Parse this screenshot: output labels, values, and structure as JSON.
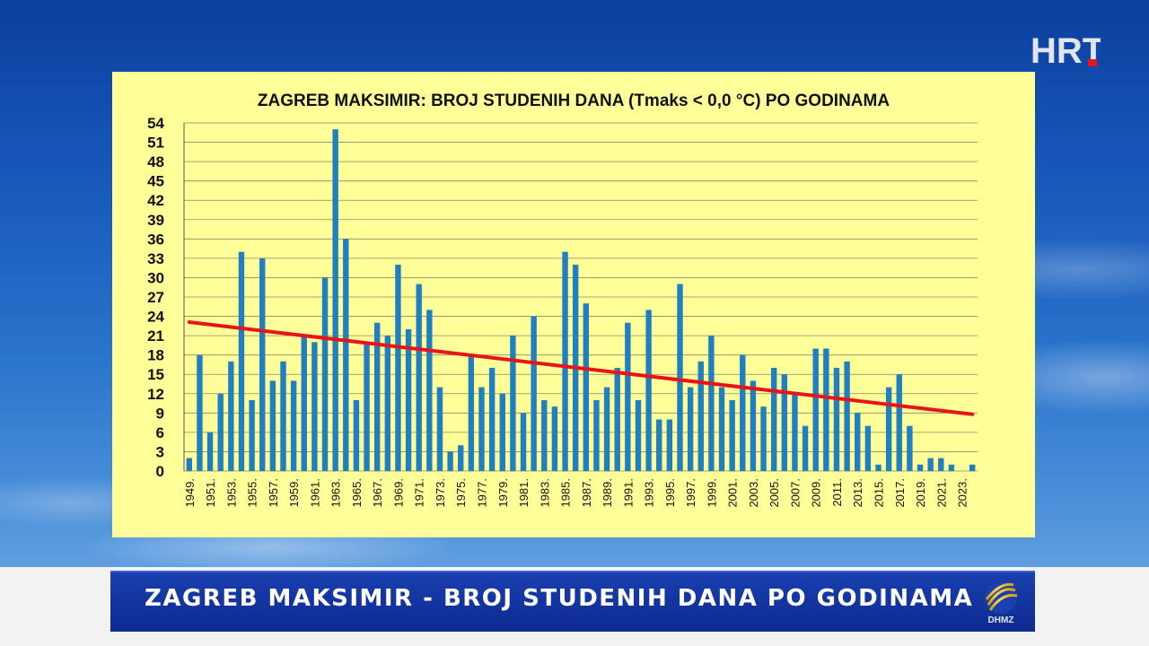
{
  "broadcaster_logo": "HRT",
  "chart_data": {
    "type": "bar",
    "title": "ZAGREB MAKSIMIR: BROJ STUDENIH DANA (Tmaks < 0,0 °C) PO GODINAMA",
    "xlabel": "",
    "ylabel": "",
    "ylim": [
      0,
      54
    ],
    "yticks": [
      0,
      3,
      6,
      9,
      12,
      15,
      18,
      21,
      24,
      27,
      30,
      33,
      36,
      39,
      42,
      45,
      48,
      51,
      54
    ],
    "grid": true,
    "categories": [
      "1949.",
      "1950.",
      "1951.",
      "1952.",
      "1953.",
      "1954.",
      "1955.",
      "1956.",
      "1957.",
      "1958.",
      "1959.",
      "1960.",
      "1961.",
      "1962.",
      "1963.",
      "1964.",
      "1965.",
      "1966.",
      "1967.",
      "1968.",
      "1969.",
      "1970.",
      "1971.",
      "1972.",
      "1973.",
      "1974.",
      "1975.",
      "1976.",
      "1977.",
      "1978.",
      "1979.",
      "1980.",
      "1981.",
      "1982.",
      "1983.",
      "1984.",
      "1985.",
      "1986.",
      "1987.",
      "1988.",
      "1989.",
      "1990.",
      "1991.",
      "1992.",
      "1993.",
      "1994.",
      "1995.",
      "1996.",
      "1997.",
      "1998.",
      "1999.",
      "2000.",
      "2001.",
      "2002.",
      "2003.",
      "2004.",
      "2005.",
      "2006.",
      "2007.",
      "2008.",
      "2009.",
      "2010.",
      "2011.",
      "2012.",
      "2013.",
      "2014.",
      "2015.",
      "2016.",
      "2017.",
      "2018.",
      "2019.",
      "2020.",
      "2021.",
      "2022.",
      "2023.",
      "2024."
    ],
    "tick_labels": [
      "1949.",
      "1951.",
      "1953.",
      "1955.",
      "1957.",
      "1959.",
      "1961.",
      "1963.",
      "1965.",
      "1967.",
      "1969.",
      "1971.",
      "1973.",
      "1975.",
      "1977.",
      "1979.",
      "1981.",
      "1983.",
      "1985.",
      "1987.",
      "1989.",
      "1991.",
      "1993.",
      "1995.",
      "1997.",
      "1999.",
      "2001.",
      "2003.",
      "2005.",
      "2007.",
      "2009.",
      "2011.",
      "2013.",
      "2015.",
      "2017.",
      "2019.",
      "2021.",
      "2023."
    ],
    "values": [
      2,
      18,
      6,
      12,
      17,
      34,
      11,
      33,
      14,
      17,
      14,
      21,
      20,
      30,
      53,
      36,
      11,
      20,
      23,
      21,
      32,
      22,
      29,
      25,
      13,
      3,
      4,
      18,
      13,
      16,
      12,
      21,
      9,
      24,
      11,
      10,
      34,
      32,
      26,
      11,
      13,
      16,
      23,
      11,
      25,
      8,
      8,
      29,
      13,
      17,
      21,
      13,
      11,
      18,
      14,
      10,
      16,
      15,
      12,
      7,
      19,
      19,
      16,
      17,
      9,
      7,
      1,
      13,
      15,
      7,
      1,
      2,
      2,
      1,
      0,
      1
    ],
    "bar_color": "#1f7fc0",
    "trend": {
      "start_value": 23.1,
      "end_value": 8.8,
      "color": "#e8141a"
    }
  },
  "banner": {
    "text": "ZAGREB MAKSIMIR - BROJ STUDENIH DANA PO GODINAMA",
    "logo_label": "DHMZ"
  }
}
